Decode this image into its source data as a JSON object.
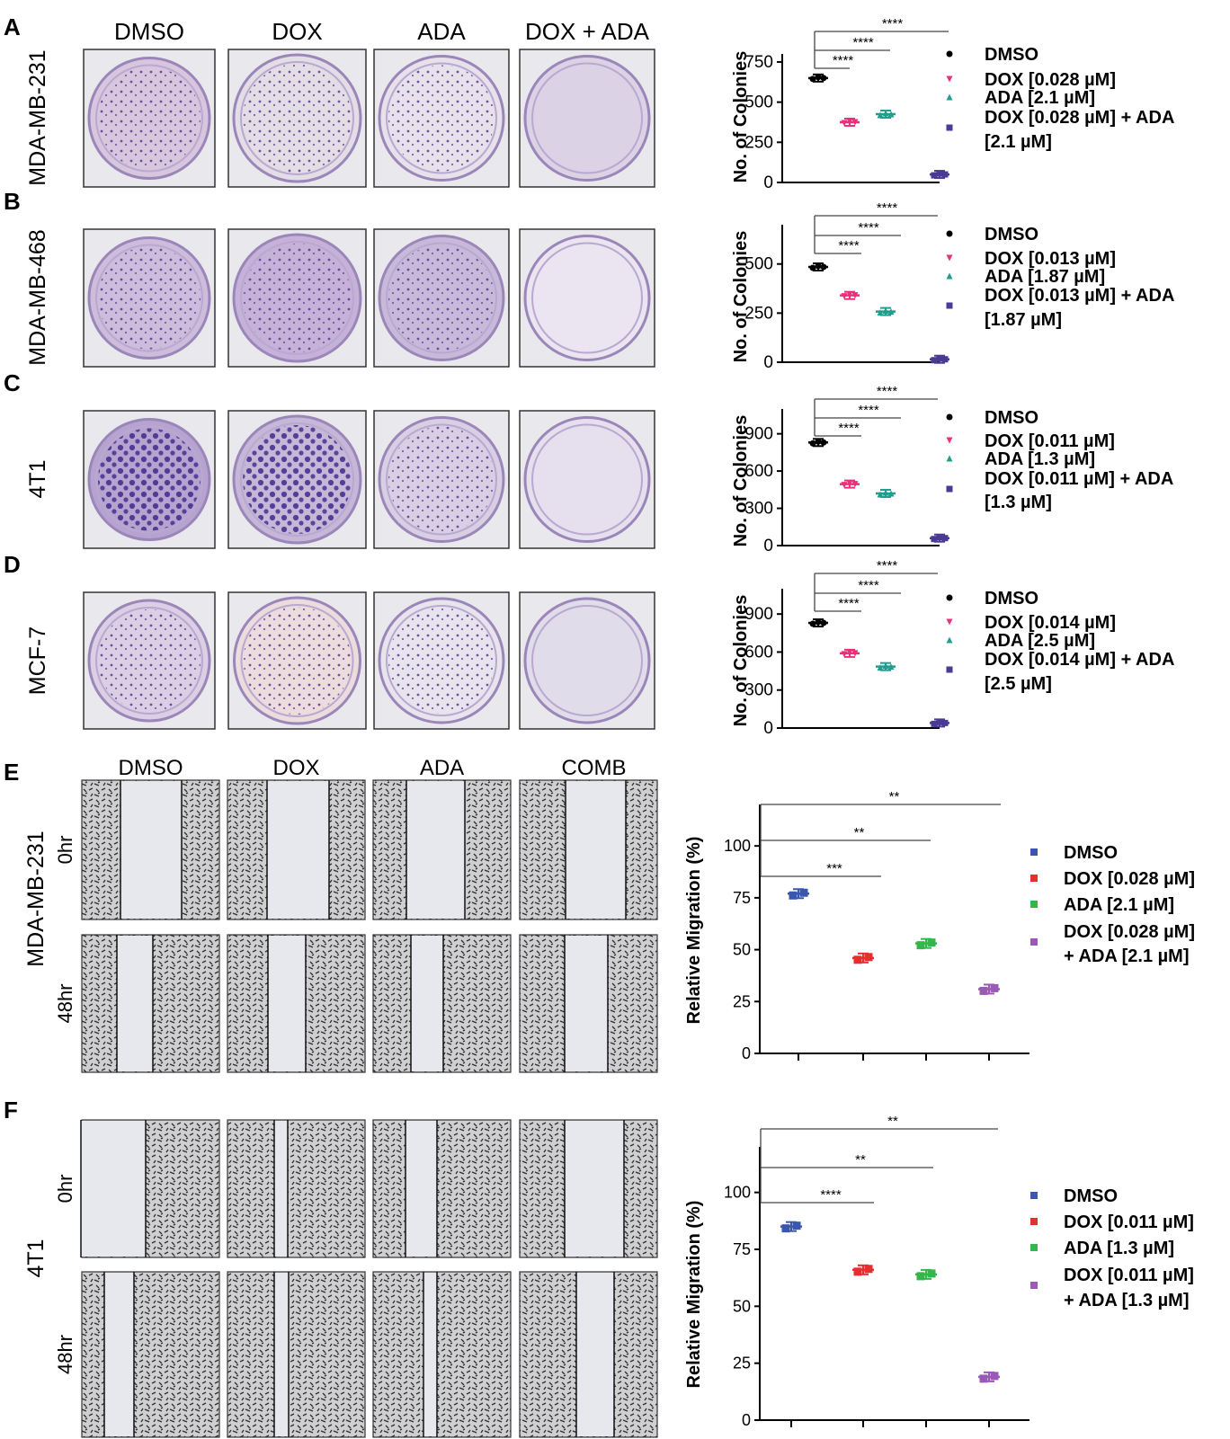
{
  "colony_labels": [
    "DMSO",
    "DOX",
    "ADA",
    "DOX + ADA"
  ],
  "migration_labels": [
    "DMSO",
    "DOX",
    "ADA",
    "COMB"
  ],
  "timepoints": [
    "0hr",
    "48hr"
  ],
  "panels": [
    {
      "letter": "A",
      "cell_line": "MDA-MB-231",
      "dish_colors": [
        "#d8c6de",
        "#e3dde6",
        "#e6e1ea",
        "#dcd2e6"
      ]
    },
    {
      "letter": "B",
      "cell_line": "MDA-MB-468",
      "dish_colors": [
        "#cdbcdc",
        "#c6b1d8",
        "#c8b9da",
        "#ebe4f1"
      ]
    },
    {
      "letter": "C",
      "cell_line": "4T1",
      "dish_colors": [
        "#b7a3d0",
        "#c6b6d8",
        "#d8cfe5",
        "#e6e0ee"
      ]
    },
    {
      "letter": "D",
      "cell_line": "MCF-7",
      "dish_colors": [
        "#dccee4",
        "#ecdcde",
        "#e8e4ee",
        "#e1dcea"
      ]
    },
    {
      "letter": "E",
      "cell_line": "MDA-MB-231"
    },
    {
      "letter": "F",
      "cell_line": "4T1"
    }
  ],
  "chart_data": [
    {
      "type": "scatter",
      "panel": "A",
      "ylabel": "No. of Colonies",
      "ylim": [
        0,
        800
      ],
      "yticks": [
        0,
        250,
        500,
        750
      ],
      "series": [
        {
          "name": "DMSO",
          "values": [
            650
          ],
          "color": "#000000",
          "marker": "circle"
        },
        {
          "name": "DOX [0.028 µM]",
          "values": [
            375
          ],
          "color": "#e8317a",
          "marker": "triangle-down"
        },
        {
          "name": "ADA [2.1 µM]",
          "values": [
            425
          ],
          "color": "#1f9e8e",
          "marker": "triangle-up"
        },
        {
          "name": "DOX [0.028 µM] + ADA [2.1 µM]",
          "values": [
            50
          ],
          "color": "#4a3a94",
          "marker": "square"
        }
      ],
      "legend": [
        "DMSO",
        "DOX [0.028 µM]",
        "ADA [2.1 µM]",
        "DOX [0.028 µM] + ADA",
        "[2.1 µM]"
      ],
      "significance": [
        "****",
        "****",
        "****"
      ]
    },
    {
      "type": "scatter",
      "panel": "B",
      "ylabel": "No. of Colonies",
      "ylim": [
        0,
        700
      ],
      "yticks": [
        0,
        250,
        500
      ],
      "series": [
        {
          "name": "DMSO",
          "values": [
            485
          ],
          "color": "#000000",
          "marker": "circle"
        },
        {
          "name": "DOX [0.013 µM]",
          "values": [
            340
          ],
          "color": "#e8317a",
          "marker": "triangle-down"
        },
        {
          "name": "ADA [1.87 µM]",
          "values": [
            258
          ],
          "color": "#1f9e8e",
          "marker": "triangle-up"
        },
        {
          "name": "DOX [0.013 µM] + ADA [1.87 µM]",
          "values": [
            15
          ],
          "color": "#4a3a94",
          "marker": "square"
        }
      ],
      "legend": [
        "DMSO",
        "DOX [0.013 µM]",
        "ADA [1.87 µM]",
        "DOX [0.013 µM] + ADA",
        "[1.87 µM]"
      ],
      "significance": [
        "****",
        "****",
        "****"
      ]
    },
    {
      "type": "scatter",
      "panel": "C",
      "ylabel": "No. of Colonies",
      "ylim": [
        0,
        1100
      ],
      "yticks": [
        0,
        300,
        600,
        900
      ],
      "series": [
        {
          "name": "DMSO",
          "values": [
            830
          ],
          "color": "#000000",
          "marker": "circle"
        },
        {
          "name": "DOX [0.011 µM]",
          "values": [
            495
          ],
          "color": "#e8317a",
          "marker": "triangle-down"
        },
        {
          "name": "ADA [1.3 µM]",
          "values": [
            420
          ],
          "color": "#1f9e8e",
          "marker": "triangle-up"
        },
        {
          "name": "DOX [0.011 µM] + ADA [1.3 µM]",
          "values": [
            60
          ],
          "color": "#4a3a94",
          "marker": "square"
        }
      ],
      "legend": [
        "DMSO",
        "DOX [0.011 µM]",
        "ADA [1.3 µM]",
        "DOX [0.011 µM] + ADA",
        "[1.3 µM]"
      ],
      "significance": [
        "****",
        "****",
        "****"
      ]
    },
    {
      "type": "scatter",
      "panel": "D",
      "ylabel": "No. of Colonies",
      "ylim": [
        0,
        1100
      ],
      "yticks": [
        0,
        300,
        600,
        900
      ],
      "series": [
        {
          "name": "DMSO",
          "values": [
            830
          ],
          "color": "#000000",
          "marker": "circle"
        },
        {
          "name": "DOX [0.014 µM]",
          "values": [
            590
          ],
          "color": "#e8317a",
          "marker": "triangle-down"
        },
        {
          "name": "ADA [2.5 µM]",
          "values": [
            485
          ],
          "color": "#1f9e8e",
          "marker": "triangle-up"
        },
        {
          "name": "DOX [0.014 µM] + ADA [2.5 µM]",
          "values": [
            40
          ],
          "color": "#4a3a94",
          "marker": "square"
        }
      ],
      "legend": [
        "DMSO",
        "DOX [0.014 µM]",
        "ADA [2.5 µM]",
        "DOX [0.014 µM] + ADA",
        "[2.5 µM]"
      ],
      "significance": [
        "****",
        "****",
        "****"
      ]
    },
    {
      "type": "scatter",
      "panel": "E",
      "ylabel": "Relative Migration (%)",
      "ylim": [
        0,
        120
      ],
      "yticks": [
        0,
        25,
        50,
        75,
        100
      ],
      "series": [
        {
          "name": "DMSO",
          "values": [
            77
          ],
          "color": "#3a57b0",
          "marker": "square"
        },
        {
          "name": "DOX [0.028 µM]",
          "values": [
            46
          ],
          "color": "#e62e2e",
          "marker": "square"
        },
        {
          "name": "ADA [2.1 µM]",
          "values": [
            53
          ],
          "color": "#35b54a",
          "marker": "square"
        },
        {
          "name": "DOX [0.028 µM] + ADA [2.1 µM]",
          "values": [
            31
          ],
          "color": "#9b59b6",
          "marker": "square"
        }
      ],
      "legend": [
        "DMSO",
        "DOX [0.028 µM]",
        "ADA [2.1 µM]",
        "DOX [0.028 µM]",
        "+ ADA [2.1 µM]"
      ],
      "significance": [
        "**",
        "**",
        "***"
      ]
    },
    {
      "type": "scatter",
      "panel": "F",
      "ylabel": "Relative Migration (%)",
      "ylim": [
        0,
        120
      ],
      "yticks": [
        0,
        25,
        50,
        75,
        100
      ],
      "series": [
        {
          "name": "DMSO",
          "values": [
            85
          ],
          "color": "#3a57b0",
          "marker": "square"
        },
        {
          "name": "DOX [0.011 µM]",
          "values": [
            66
          ],
          "color": "#e62e2e",
          "marker": "square"
        },
        {
          "name": "ADA [1.3 µM]",
          "values": [
            64
          ],
          "color": "#35b54a",
          "marker": "square"
        },
        {
          "name": "DOX [0.011 µM] + ADA [1.3 µM]",
          "values": [
            19
          ],
          "color": "#9b59b6",
          "marker": "square"
        }
      ],
      "legend": [
        "DMSO",
        "DOX [0.011 µM]",
        "ADA [1.3 µM]",
        "DOX [0.011 µM]",
        "+ ADA [1.3 µM]"
      ],
      "significance": [
        "**",
        "**",
        "****"
      ]
    }
  ]
}
